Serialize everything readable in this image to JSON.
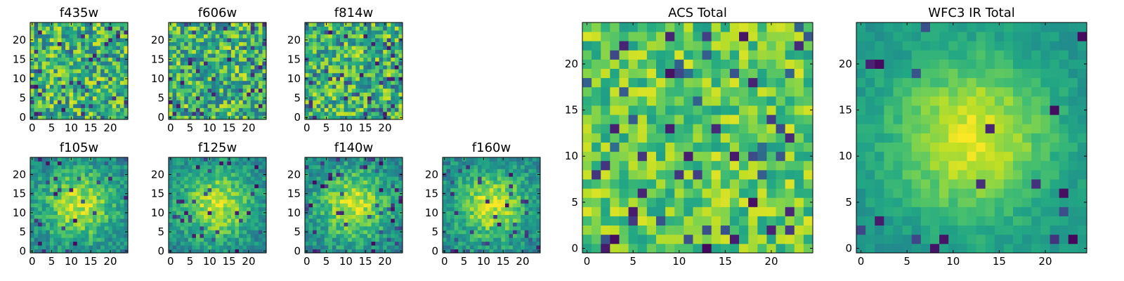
{
  "chart_data": [
    {
      "type": "heatmap",
      "title": "f435w",
      "colormap": "viridis",
      "grid_size": [
        25,
        25
      ],
      "xticks": [
        "0",
        "5",
        "10",
        "15",
        "20"
      ],
      "yticks": [
        "0",
        "5",
        "10",
        "15",
        "20"
      ],
      "xlim": [
        -0.5,
        24.5
      ],
      "ylim": [
        -0.5,
        24.5
      ],
      "pattern": "noise",
      "seed": 11
    },
    {
      "type": "heatmap",
      "title": "f606w",
      "colormap": "viridis",
      "grid_size": [
        25,
        25
      ],
      "xticks": [
        "0",
        "5",
        "10",
        "15",
        "20"
      ],
      "yticks": [
        "0",
        "5",
        "10",
        "15",
        "20"
      ],
      "xlim": [
        -0.5,
        24.5
      ],
      "ylim": [
        -0.5,
        24.5
      ],
      "pattern": "noise",
      "seed": 23
    },
    {
      "type": "heatmap",
      "title": "f814w",
      "colormap": "viridis",
      "grid_size": [
        25,
        25
      ],
      "xticks": [
        "0",
        "5",
        "10",
        "15",
        "20"
      ],
      "yticks": [
        "0",
        "5",
        "10",
        "15",
        "20"
      ],
      "xlim": [
        -0.5,
        24.5
      ],
      "ylim": [
        -0.5,
        24.5
      ],
      "pattern": "noise",
      "seed": 37
    },
    {
      "type": "heatmap",
      "title": "f105w",
      "colormap": "viridis",
      "grid_size": [
        25,
        25
      ],
      "xticks": [
        "0",
        "5",
        "10",
        "15",
        "20"
      ],
      "yticks": [
        "0",
        "5",
        "10",
        "15",
        "20"
      ],
      "xlim": [
        -0.5,
        24.5
      ],
      "ylim": [
        -0.5,
        24.5
      ],
      "pattern": "blob",
      "seed": 41
    },
    {
      "type": "heatmap",
      "title": "f125w",
      "colormap": "viridis",
      "grid_size": [
        25,
        25
      ],
      "xticks": [
        "0",
        "5",
        "10",
        "15",
        "20"
      ],
      "yticks": [
        "0",
        "5",
        "10",
        "15",
        "20"
      ],
      "xlim": [
        -0.5,
        24.5
      ],
      "ylim": [
        -0.5,
        24.5
      ],
      "pattern": "blob",
      "seed": 53
    },
    {
      "type": "heatmap",
      "title": "f140w",
      "colormap": "viridis",
      "grid_size": [
        25,
        25
      ],
      "xticks": [
        "0",
        "5",
        "10",
        "15",
        "20"
      ],
      "yticks": [
        "0",
        "5",
        "10",
        "15",
        "20"
      ],
      "xlim": [
        -0.5,
        24.5
      ],
      "ylim": [
        -0.5,
        24.5
      ],
      "pattern": "blob",
      "seed": 67
    },
    {
      "type": "heatmap",
      "title": "f160w",
      "colormap": "viridis",
      "grid_size": [
        25,
        25
      ],
      "xticks": [
        "0",
        "5",
        "10",
        "15",
        "20"
      ],
      "yticks": [
        "0",
        "5",
        "10",
        "15",
        "20"
      ],
      "xlim": [
        -0.5,
        24.5
      ],
      "ylim": [
        -0.5,
        24.5
      ],
      "pattern": "blob",
      "seed": 79
    },
    {
      "type": "heatmap",
      "title": "ACS Total",
      "colormap": "viridis",
      "grid_size": [
        25,
        25
      ],
      "xticks": [
        "0",
        "5",
        "10",
        "15",
        "20"
      ],
      "yticks": [
        "0",
        "5",
        "10",
        "15",
        "20"
      ],
      "xlim": [
        -0.5,
        24.5
      ],
      "ylim": [
        -0.5,
        24.5
      ],
      "pattern": "noise-bright",
      "seed": 97
    },
    {
      "type": "heatmap",
      "title": "WFC3 IR Total",
      "colormap": "viridis",
      "grid_size": [
        25,
        25
      ],
      "xticks": [
        "0",
        "5",
        "10",
        "15",
        "20"
      ],
      "yticks": [
        "0",
        "5",
        "10",
        "15",
        "20"
      ],
      "xlim": [
        -0.5,
        24.5
      ],
      "ylim": [
        -0.5,
        24.5
      ],
      "pattern": "smooth-blob",
      "seed": 113
    }
  ]
}
